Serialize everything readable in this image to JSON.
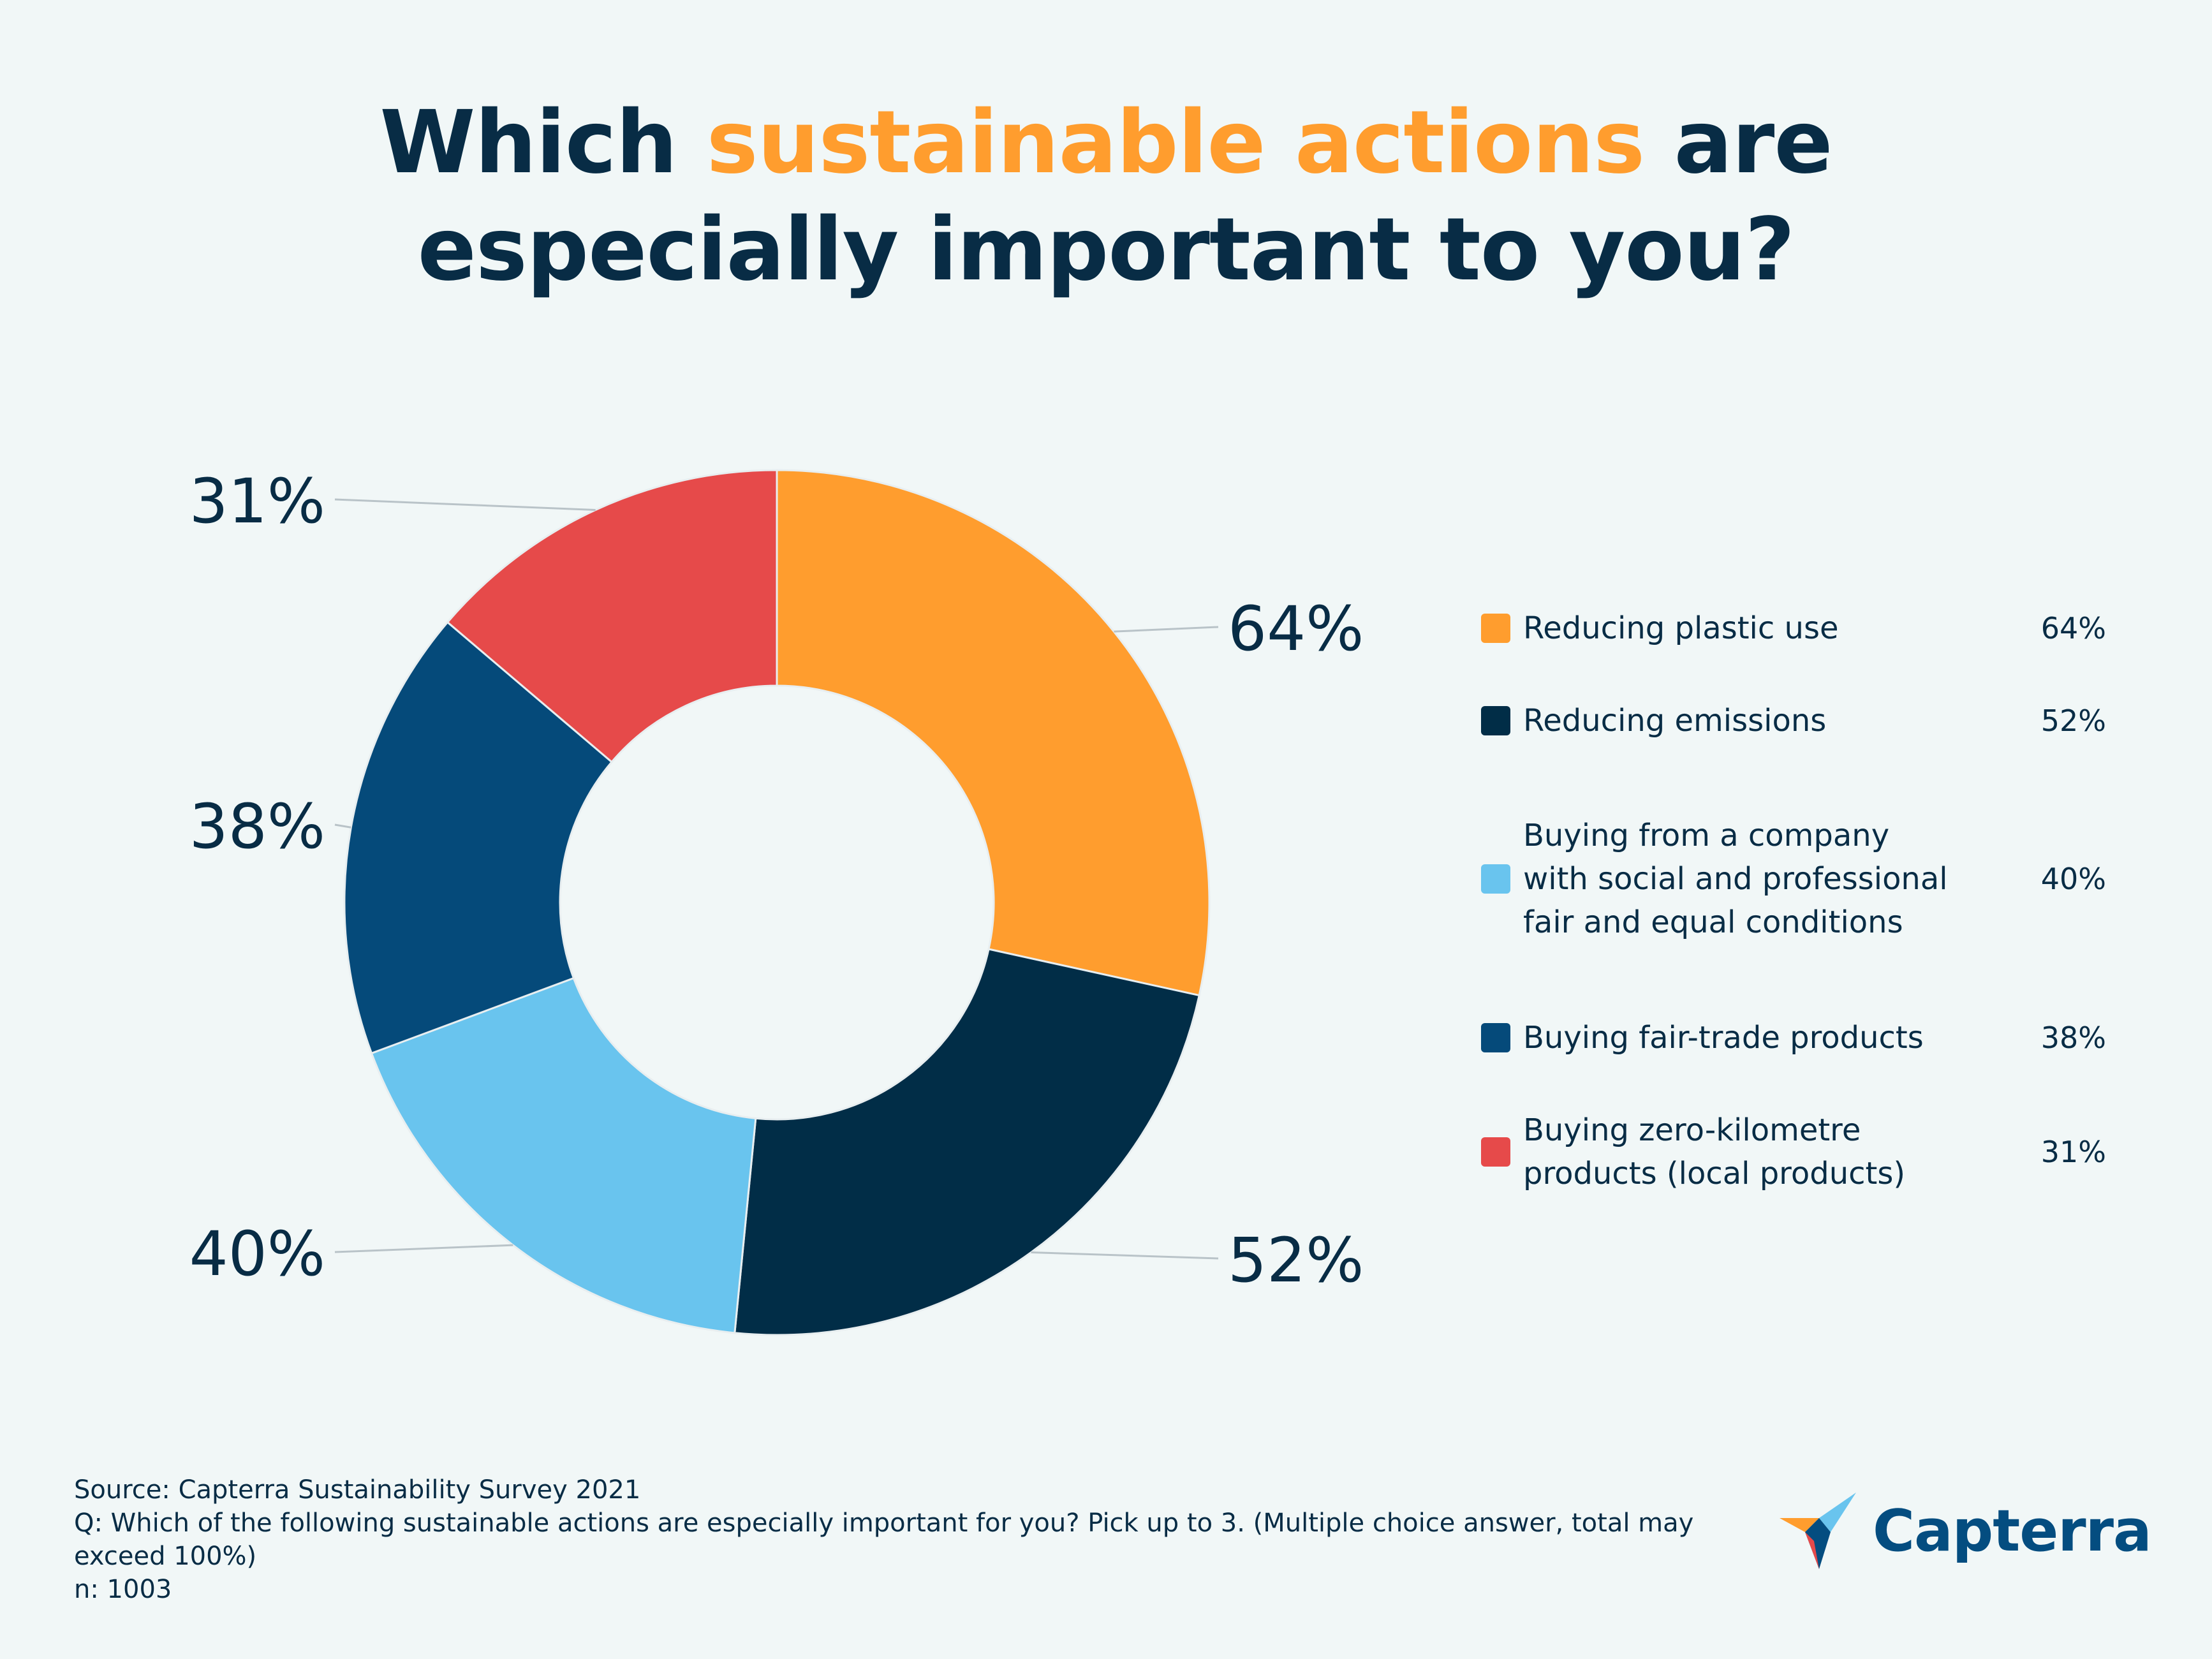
{
  "title": {
    "part1": "Which ",
    "accent": "sustainable actions",
    "part2": " are",
    "line2": "especially important to you?"
  },
  "colors": {
    "background": "#f1f7f7",
    "text": "#082c45",
    "accent": "#ff9d2e"
  },
  "chart_data": {
    "type": "pie",
    "variant": "donut",
    "title": "Which sustainable actions are especially important to you?",
    "categories": [
      "Reducing plastic use",
      "Reducing emissions",
      "Buying from a company with social and professional fair and equal conditions",
      "Buying fair-trade products",
      "Buying zero-kilometre products (local products)"
    ],
    "values": [
      64,
      52,
      40,
      38,
      31
    ],
    "labels": [
      "64%",
      "52%",
      "40%",
      "38%",
      "31%"
    ],
    "colors": [
      "#ff9d2e",
      "#012d47",
      "#69c4ee",
      "#054a7a",
      "#e64a4a"
    ],
    "legend_placement": "right"
  },
  "legend": {
    "items": [
      {
        "label": "Reducing plastic use",
        "value": "64%",
        "color": "#ff9d2e"
      },
      {
        "label": "Reducing emissions",
        "value": "52%",
        "color": "#012d47"
      },
      {
        "label": "Buying from a company with social and professional fair and equal conditions",
        "value": "40%",
        "color": "#69c4ee"
      },
      {
        "label": "Buying fair-trade products",
        "value": "38%",
        "color": "#054a7a"
      },
      {
        "label": "Buying zero-kilometre products (local products)",
        "value": "31%",
        "color": "#e64a4a"
      }
    ]
  },
  "footer": {
    "source": "Source: Capterra Sustainability Survey 2021",
    "question": "Q: Which of the following sustainable actions are especially important for you? Pick up to 3. (Multiple choice answer, total may exceed 100%)",
    "n": "n: 1003"
  },
  "logo": {
    "text": "Capterra"
  }
}
